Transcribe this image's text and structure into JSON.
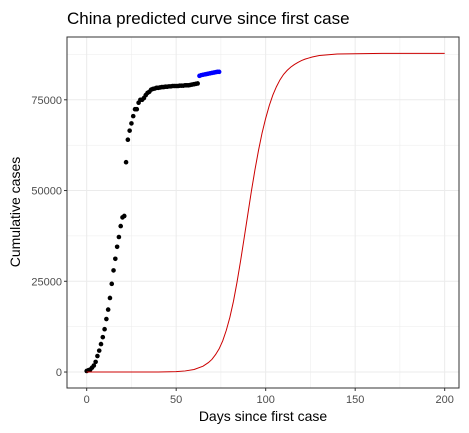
{
  "chart_data": {
    "type": "scatter",
    "title": "China predicted curve since first case",
    "xlabel": "Days since first case",
    "ylabel": "Cumulative cases",
    "xlim": [
      -11,
      208
    ],
    "ylim": [
      -4400,
      92300
    ],
    "x_ticks": [
      0,
      50,
      100,
      150,
      200
    ],
    "x_tick_labels": [
      "0",
      "50",
      "100",
      "150",
      "200"
    ],
    "y_ticks": [
      0,
      25000,
      50000,
      75000
    ],
    "y_tick_labels": [
      "0",
      "25000",
      "50000",
      "75000"
    ],
    "grid": true,
    "legend": "none",
    "colors": {
      "observed": "#000000",
      "recent": "#0000ff",
      "predicted": "#cc0000",
      "grid": "#ebebeb",
      "frame": "#333333"
    },
    "series": [
      {
        "kind": "points",
        "color": "#000000",
        "x": [
          0,
          1,
          2,
          3,
          4,
          5,
          6,
          7,
          8,
          9,
          10,
          11,
          12,
          13,
          14,
          15,
          16,
          17,
          18,
          19,
          20,
          21,
          22,
          23,
          24,
          25,
          26,
          27,
          28,
          29,
          30,
          31,
          32,
          33,
          34,
          35,
          36,
          37,
          38,
          39,
          40,
          41,
          42,
          43,
          44,
          45,
          46,
          47,
          48,
          49,
          50,
          51,
          52,
          53,
          54,
          55,
          56,
          57,
          58,
          59,
          60,
          61,
          62
        ],
        "y": [
          300,
          500,
          700,
          1200,
          1800,
          2800,
          4400,
          5900,
          7700,
          9600,
          11800,
          14600,
          17200,
          20400,
          24300,
          28000,
          31200,
          34500,
          37200,
          40200,
          42600,
          43000,
          57800,
          64000,
          66500,
          68500,
          70500,
          72400,
          72400,
          74200,
          75000,
          75000,
          75500,
          76300,
          76900,
          77200,
          77800,
          78000,
          78100,
          78300,
          78300,
          78400,
          78500,
          78500,
          78600,
          78600,
          78700,
          78700,
          78800,
          78800,
          78800,
          78800,
          78900,
          78900,
          78900,
          79000,
          79000,
          79000,
          79100,
          79200,
          79300,
          79400,
          79500
        ]
      },
      {
        "kind": "points",
        "color": "#0000ff",
        "x": [
          63,
          64,
          65,
          66,
          67,
          68,
          69,
          70,
          71,
          72,
          73,
          74
        ],
        "y": [
          81600,
          81800,
          81900,
          82000,
          82100,
          82200,
          82300,
          82400,
          82500,
          82600,
          82700,
          82700
        ]
      },
      {
        "kind": "line",
        "color": "#cc0000",
        "x": [
          0,
          10,
          20,
          30,
          40,
          50,
          55,
          60,
          65,
          68,
          70,
          72,
          74,
          76,
          78,
          80,
          82,
          84,
          86,
          88,
          90,
          92,
          94,
          96,
          98,
          100,
          102,
          104,
          106,
          108,
          110,
          112,
          114,
          116,
          118,
          120,
          122,
          124,
          126,
          128,
          130,
          135,
          140,
          150,
          160,
          170,
          180,
          190,
          200
        ],
        "y": [
          0,
          0,
          0,
          0,
          0,
          100,
          300,
          700,
          1600,
          2600,
          3500,
          4800,
          6400,
          8600,
          11500,
          15100,
          19500,
          24800,
          30700,
          37000,
          43400,
          49800,
          55700,
          61100,
          65900,
          69900,
          73400,
          76300,
          78600,
          80500,
          82000,
          83100,
          84000,
          84700,
          85300,
          85800,
          86200,
          86500,
          86800,
          87000,
          87200,
          87400,
          87600,
          87700,
          87750,
          87800,
          87800,
          87800,
          87800
        ]
      }
    ]
  }
}
